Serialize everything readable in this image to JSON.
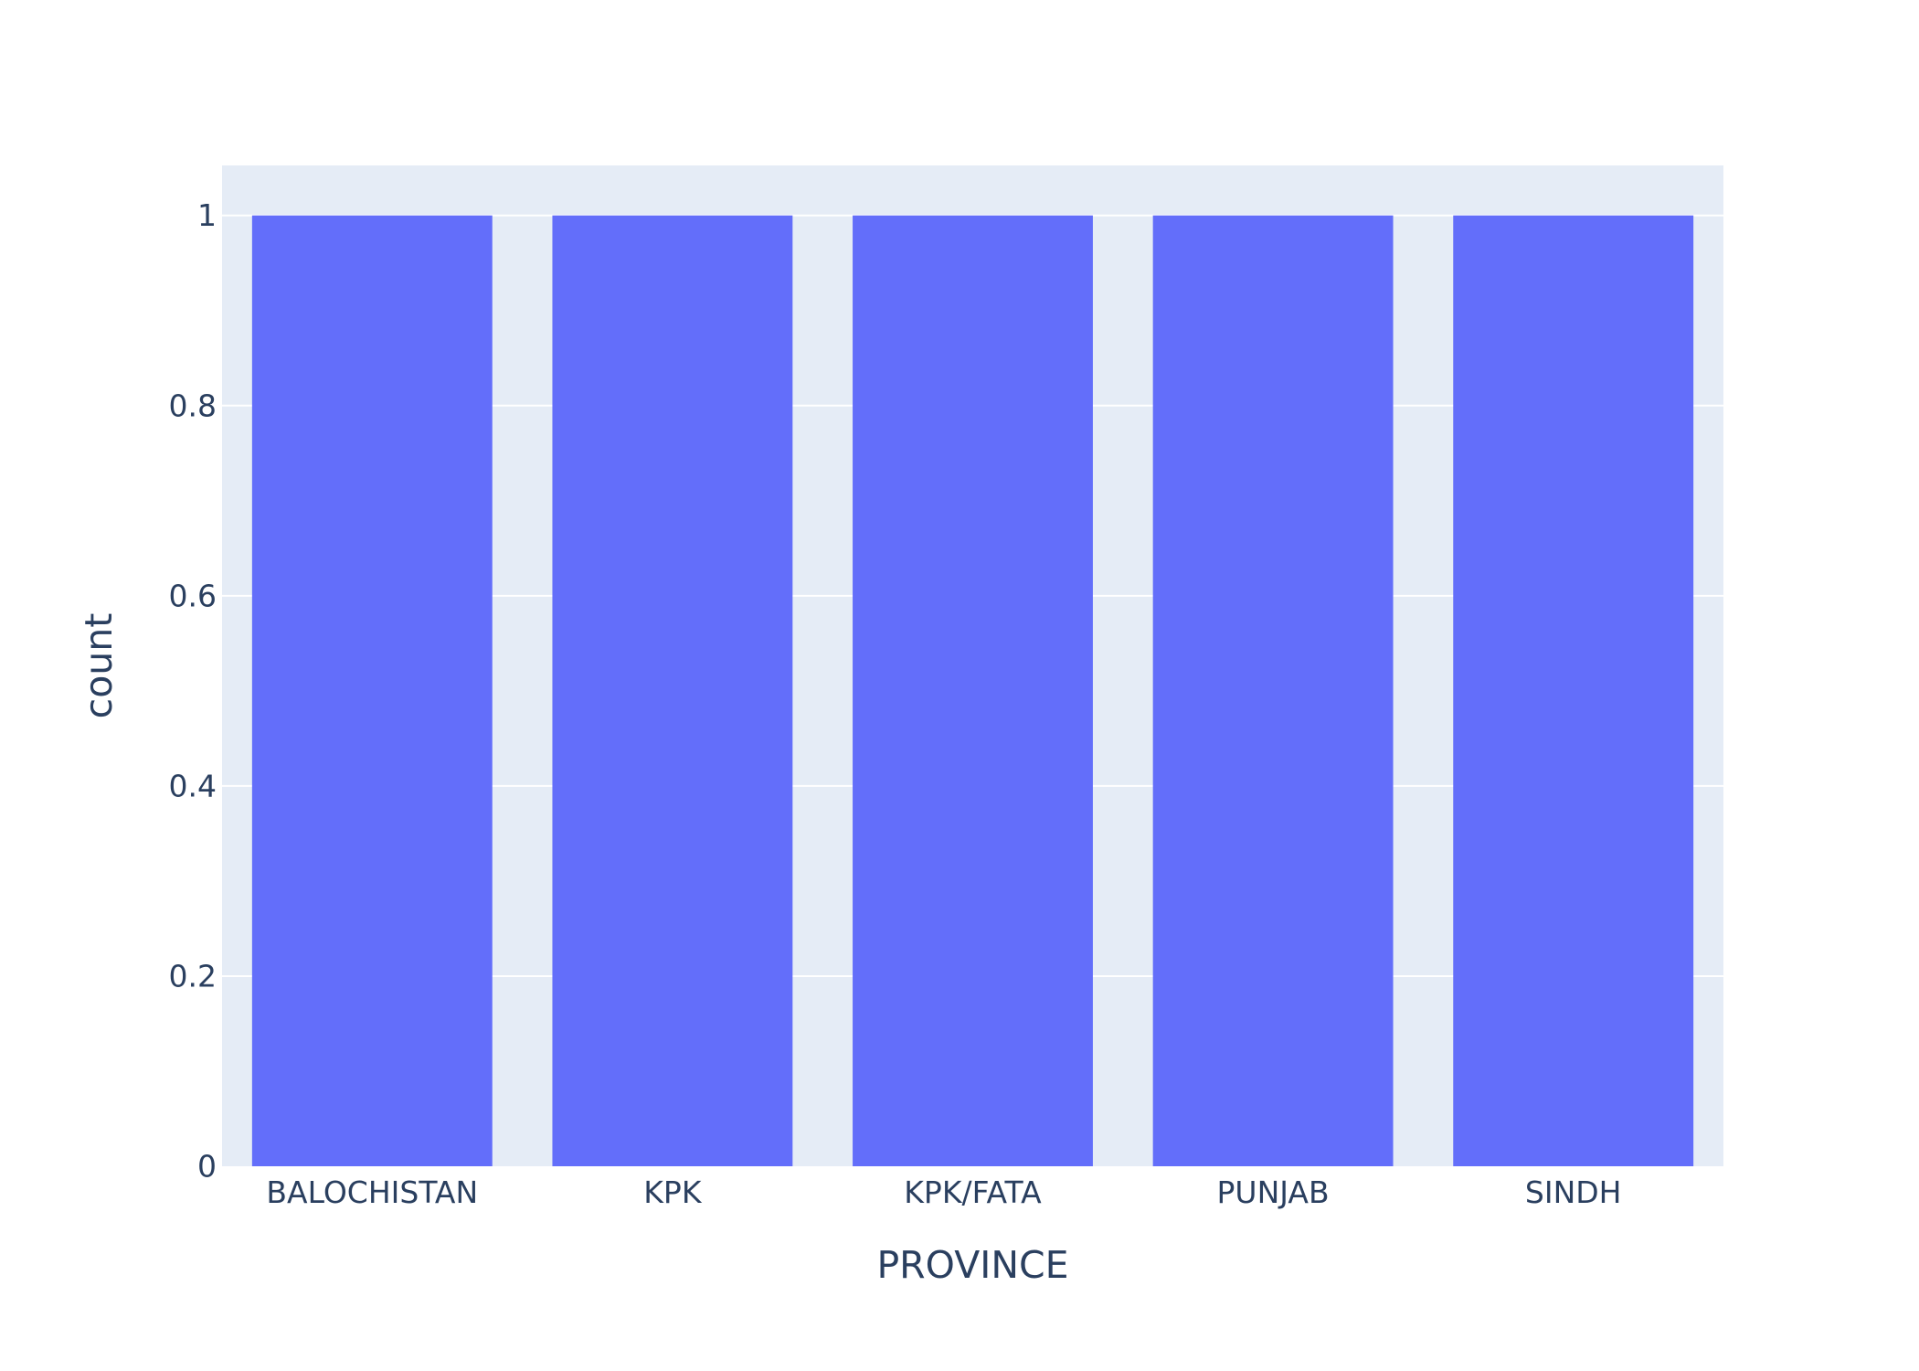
{
  "chart_data": {
    "type": "bar",
    "categories": [
      "BALOCHISTAN",
      "KPK",
      "KPK/FATA",
      "PUNJAB",
      "SINDH"
    ],
    "values": [
      1,
      1,
      1,
      1,
      1
    ],
    "title": "",
    "xlabel": "PROVINCE",
    "ylabel": "count",
    "ylim": [
      0,
      1.0526
    ],
    "yticks": [
      0,
      0.2,
      0.4,
      0.6,
      0.8,
      1
    ],
    "ytick_labels": [
      "0",
      "0.2",
      "0.4",
      "0.6",
      "0.8",
      "1"
    ],
    "grid": true,
    "legend": "none",
    "colors": {
      "bar": "#636efa",
      "plot_background": "#e5ecf6",
      "gridline": "#ffffff",
      "text": "#2a3f5f"
    }
  }
}
